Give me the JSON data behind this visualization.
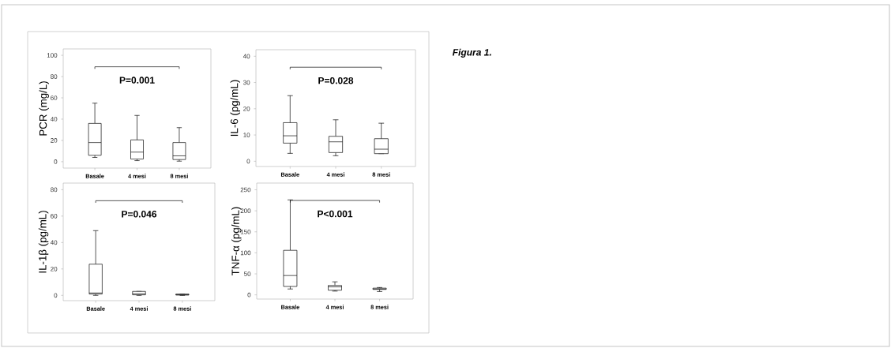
{
  "chart_data": [
    {
      "type": "box",
      "categories": [
        "Basale",
        "4 mesi",
        "8 mesi"
      ],
      "ylabel": "PCR (mg/L)",
      "ylim": [
        -6,
        106
      ],
      "yticks": [
        0,
        20,
        40,
        60,
        80,
        100
      ],
      "annotations": [
        "P=0.001",
        "Figura 1."
      ],
      "boxes": [
        {
          "low": 4,
          "q1": 6,
          "median": 18,
          "q3": 36,
          "high": 55
        },
        {
          "low": 1,
          "q1": 2.5,
          "median": 9,
          "q3": 20.5,
          "high": 43.5
        },
        {
          "low": 0.5,
          "q1": 2,
          "median": 5.5,
          "q3": 18,
          "high": 32
        }
      ]
    },
    {
      "type": "box",
      "categories": [
        "Basale",
        "4 mesi",
        "8 mesi"
      ],
      "ylabel": "IL-6 (pg/mL)",
      "ylim": [
        -2,
        42.5
      ],
      "yticks": [
        0,
        10,
        20,
        30,
        40
      ],
      "annotations": [
        "P=0.028"
      ],
      "boxes": [
        {
          "low": 3,
          "q1": 6.9,
          "median": 9.7,
          "q3": 14.7,
          "high": 25
        },
        {
          "low": 2.1,
          "q1": 3.3,
          "median": 7.4,
          "q3": 9.5,
          "high": 15.8
        },
        {
          "low": 2.9,
          "q1": 2.9,
          "median": 4.6,
          "q3": 8.6,
          "high": 14.5
        }
      ]
    },
    {
      "type": "box",
      "categories": [
        "Basale",
        "4 mesi",
        "8 mesi"
      ],
      "ylabel": "IL-1β (pg/mL)",
      "ylim": [
        -4,
        85
      ],
      "yticks": [
        0,
        20,
        40,
        60,
        80
      ],
      "annotations": [
        "P=0.046"
      ],
      "boxes": [
        {
          "low": 0,
          "q1": 1,
          "median": 1.8,
          "q3": 23.6,
          "high": 49
        },
        {
          "low": 0,
          "q1": 0.4,
          "median": 1.2,
          "q3": 3,
          "high": 3
        },
        {
          "low": 0,
          "q1": 0.2,
          "median": 0.5,
          "q3": 1,
          "high": 1
        }
      ]
    },
    {
      "type": "box",
      "categories": [
        "Basale",
        "4 mesi",
        "8 mesi"
      ],
      "ylabel": "TNF-α (pg/mL)",
      "ylim": [
        -10,
        266
      ],
      "yticks": [
        0,
        50,
        100,
        150,
        200,
        250
      ],
      "annotations": [
        "P<0.001"
      ],
      "boxes": [
        {
          "low": 14,
          "q1": 20,
          "median": 46,
          "q3": 106,
          "high": 226
        },
        {
          "low": 9,
          "q1": 11,
          "median": 19,
          "q3": 22.5,
          "high": 31
        },
        {
          "low": 8,
          "q1": 13,
          "median": 14,
          "q3": 16,
          "high": 17.5
        }
      ]
    }
  ]
}
